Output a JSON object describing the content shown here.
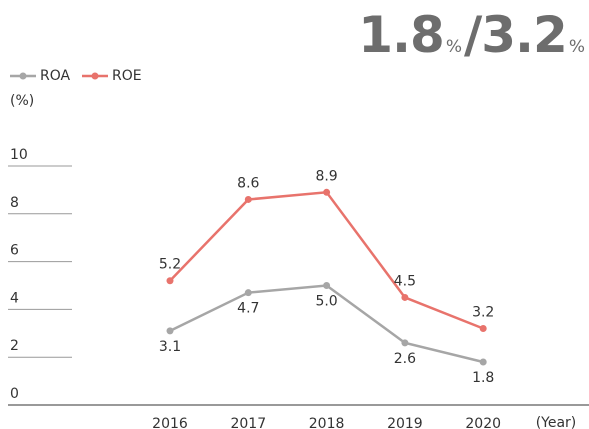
{
  "headline": {
    "roa": "1.8",
    "separator": "/",
    "roe": "3.2",
    "unit": "%"
  },
  "chart_data": {
    "type": "line",
    "y_unit_label": "(%)",
    "x_unit_label": "(Year)",
    "categories": [
      "2016",
      "2017",
      "2018",
      "2019",
      "2020"
    ],
    "series": [
      {
        "name": "ROA",
        "color": "#a6a6a6",
        "values": [
          3.1,
          4.7,
          5.0,
          2.6,
          1.8
        ],
        "value_labels": [
          "3.1",
          "4.7",
          "5.0",
          "2.6",
          "1.8"
        ]
      },
      {
        "name": "ROE",
        "color": "#e8736c",
        "values": [
          5.2,
          8.6,
          8.9,
          4.5,
          3.2
        ],
        "value_labels": [
          "5.2",
          "8.6",
          "8.9",
          "4.5",
          "3.2"
        ]
      }
    ],
    "ylim": [
      0,
      10
    ],
    "yticks": [
      0,
      2,
      4,
      6,
      8,
      10
    ],
    "grid": true,
    "legend": "top-left"
  }
}
